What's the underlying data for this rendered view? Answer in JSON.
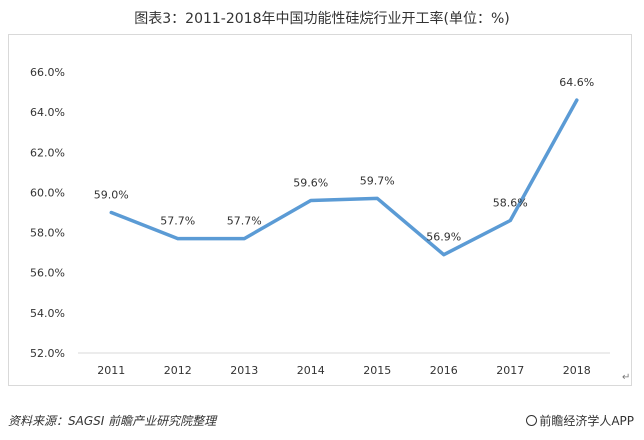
{
  "chart_data": {
    "type": "line",
    "title": "图表3：2011-2018年中国功能性硅烷行业开工率(单位：%)",
    "categories": [
      "2011",
      "2012",
      "2013",
      "2014",
      "2015",
      "2016",
      "2017",
      "2018"
    ],
    "series": [
      {
        "values": [
          59.0,
          57.7,
          57.7,
          59.6,
          59.7,
          56.9,
          58.6,
          64.6
        ]
      }
    ],
    "data_labels": [
      "59.0%",
      "57.7%",
      "57.7%",
      "59.6%",
      "59.7%",
      "56.9%",
      "58.6%",
      "64.6%"
    ],
    "y_ticks": [
      "52.0%",
      "54.0%",
      "56.0%",
      "58.0%",
      "60.0%",
      "62.0%",
      "64.0%",
      "66.0%"
    ],
    "ylim": [
      52,
      66
    ],
    "grid": false,
    "line_color": "#5b9bd5"
  },
  "footer": {
    "source": "资料来源：SAGSI 前瞻产业研究院整理",
    "brand": "前瞻经济学人APP"
  }
}
